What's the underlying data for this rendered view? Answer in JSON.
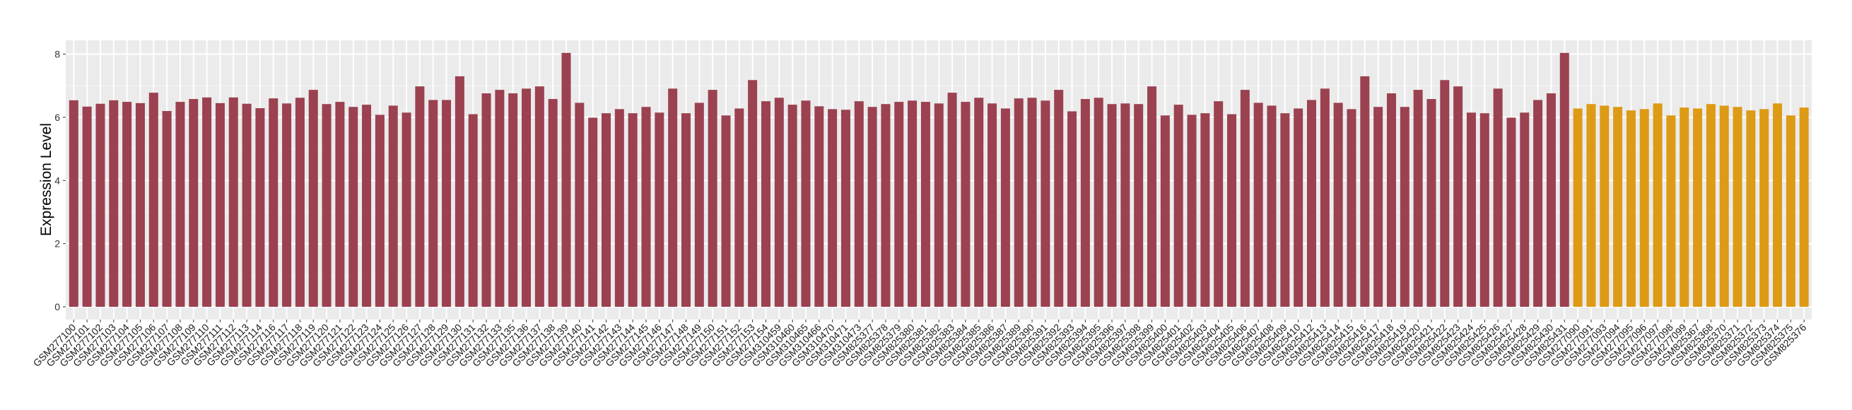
{
  "chart_data": {
    "type": "bar",
    "title": "",
    "xlabel": "",
    "ylabel": "Expression Level",
    "ylim": [
      0,
      8.45
    ],
    "yticks": [
      0,
      2,
      4,
      6,
      8
    ],
    "grid": true,
    "legend": "none",
    "background": "#EBEBEB",
    "series": [
      {
        "color": "#9B4150",
        "categories": [
          "GSM277100",
          "GSM277101",
          "GSM277102",
          "GSM277103",
          "GSM277104",
          "GSM277105",
          "GSM277106",
          "GSM277107",
          "GSM277108",
          "GSM277109",
          "GSM277110",
          "GSM277111",
          "GSM277112",
          "GSM277113",
          "GSM277114",
          "GSM277116",
          "GSM277117",
          "GSM277118",
          "GSM277119",
          "GSM277120",
          "GSM277121",
          "GSM277122",
          "GSM277123",
          "GSM277124",
          "GSM277125",
          "GSM277126",
          "GSM277127",
          "GSM277128",
          "GSM277129",
          "GSM277130",
          "GSM277131",
          "GSM277132",
          "GSM277133",
          "GSM277135",
          "GSM277136",
          "GSM277137",
          "GSM277138",
          "GSM277139",
          "GSM277140",
          "GSM277141",
          "GSM277142",
          "GSM277143",
          "GSM277144",
          "GSM277145",
          "GSM277146",
          "GSM277147",
          "GSM277148",
          "GSM277149",
          "GSM277150",
          "GSM277151",
          "GSM277152",
          "GSM277153",
          "GSM277154",
          "GSM310459",
          "GSM310460",
          "GSM310465",
          "GSM310466",
          "GSM310470",
          "GSM310471",
          "GSM310473",
          "GSM825377",
          "GSM825378",
          "GSM825379",
          "GSM825380",
          "GSM825381",
          "GSM825382",
          "GSM825383",
          "GSM825384",
          "GSM825385",
          "GSM825386",
          "GSM825387",
          "GSM825389",
          "GSM825390",
          "GSM825391",
          "GSM825392",
          "GSM825393",
          "GSM825394",
          "GSM825395",
          "GSM825396",
          "GSM825397",
          "GSM825398",
          "GSM825399",
          "GSM825400",
          "GSM825401",
          "GSM825402",
          "GSM825403",
          "GSM825404",
          "GSM825405",
          "GSM825406",
          "GSM825407",
          "GSM825408",
          "GSM825409",
          "GSM825410",
          "GSM825412",
          "GSM825413",
          "GSM825414",
          "GSM825415",
          "GSM825416",
          "GSM825417",
          "GSM825418",
          "GSM825419",
          "GSM825420",
          "GSM825421",
          "GSM825422",
          "GSM825423",
          "GSM825424",
          "GSM825425",
          "GSM825426",
          "GSM825427",
          "GSM825428",
          "GSM825429",
          "GSM825430",
          "GSM825431"
        ],
        "values": [
          6.54,
          6.34,
          6.43,
          6.54,
          6.49,
          6.45,
          6.78,
          6.2,
          6.49,
          6.58,
          6.63,
          6.45,
          6.63,
          6.43,
          6.29,
          6.6,
          6.44,
          6.62,
          6.87,
          6.42,
          6.49,
          6.33,
          6.4,
          6.08,
          6.37,
          6.15,
          6.98,
          6.55,
          6.55,
          7.3,
          6.1,
          6.76,
          6.87,
          6.76,
          6.91,
          6.98,
          6.58,
          8.04,
          6.46,
          5.99,
          6.13,
          6.26,
          6.13,
          6.33,
          6.15,
          6.91,
          6.13,
          6.46,
          6.87,
          6.06,
          6.28,
          7.18,
          6.51,
          6.62,
          6.4,
          6.53,
          6.35,
          6.26,
          6.24,
          6.51,
          6.33,
          6.42,
          6.49,
          6.53,
          6.49,
          6.44,
          6.78,
          6.49,
          6.62,
          6.44,
          6.28,
          6.6,
          6.62,
          6.53,
          6.87,
          6.19,
          6.58,
          6.62,
          6.42,
          6.44,
          6.42,
          6.98,
          6.06,
          6.4,
          6.08,
          6.13,
          6.51,
          6.1,
          6.87,
          6.46,
          6.37,
          6.13,
          6.28,
          6.55,
          6.91,
          6.46,
          6.26,
          7.3,
          6.33,
          6.76,
          6.33,
          6.87,
          6.58,
          7.18,
          6.98,
          6.15,
          6.13,
          6.91,
          5.99,
          6.15,
          6.55,
          6.76,
          8.04
        ]
      },
      {
        "color": "#DD9A14",
        "categories": [
          "GSM277090",
          "GSM277091",
          "GSM277093",
          "GSM277094",
          "GSM277095",
          "GSM277096",
          "GSM277097",
          "GSM277098",
          "GSM277099",
          "GSM825367",
          "GSM825368",
          "GSM825370",
          "GSM825371",
          "GSM825372",
          "GSM825373",
          "GSM825374",
          "GSM825375",
          "GSM825376"
        ],
        "values": [
          6.28,
          6.42,
          6.37,
          6.33,
          6.22,
          6.26,
          6.44,
          6.06,
          6.31,
          6.28,
          6.42,
          6.37,
          6.33,
          6.22,
          6.26,
          6.44,
          6.06,
          6.31
        ]
      }
    ]
  }
}
